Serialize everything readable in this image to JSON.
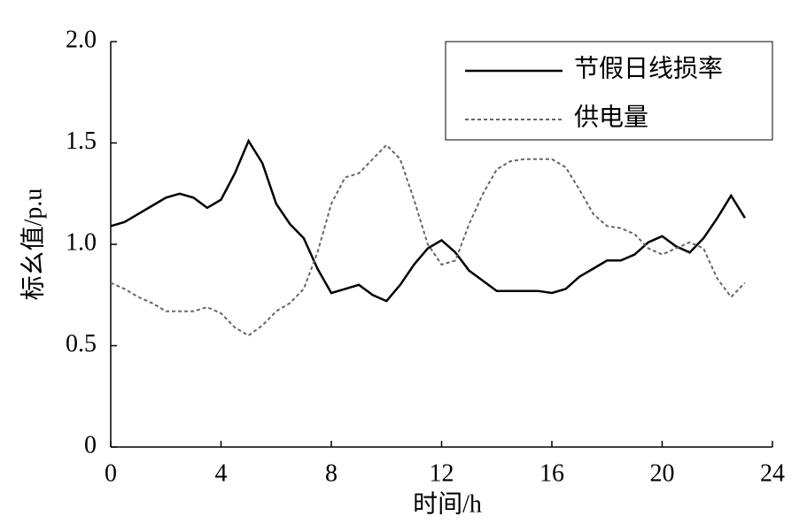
{
  "chart_data": {
    "type": "line",
    "xlabel": "时间/h",
    "ylabel": "标幺值/p.u",
    "x": [
      0,
      0.5,
      1,
      1.5,
      2,
      2.5,
      3,
      3.5,
      4,
      4.5,
      5,
      5.5,
      6,
      6.5,
      7,
      7.5,
      8,
      8.5,
      9,
      9.5,
      10,
      10.5,
      11,
      11.5,
      12,
      12.5,
      13,
      13.5,
      14,
      14.5,
      15,
      15.5,
      16,
      16.5,
      17,
      17.5,
      18,
      18.5,
      19,
      19.5,
      20,
      20.5,
      21,
      21.5,
      22,
      22.5,
      23
    ],
    "series": [
      {
        "name": "节假日线损率",
        "color": "#000000",
        "dash": false,
        "values": [
          1.09,
          1.11,
          1.15,
          1.19,
          1.23,
          1.25,
          1.23,
          1.18,
          1.22,
          1.35,
          1.51,
          1.4,
          1.2,
          1.1,
          1.03,
          0.88,
          0.76,
          0.78,
          0.8,
          0.75,
          0.72,
          0.8,
          0.9,
          0.98,
          1.02,
          0.96,
          0.87,
          0.82,
          0.77,
          0.77,
          0.77,
          0.77,
          0.76,
          0.78,
          0.84,
          0.88,
          0.92,
          0.92,
          0.95,
          1.01,
          1.04,
          0.99,
          0.96,
          1.03,
          1.13,
          1.24,
          1.13
        ]
      },
      {
        "name": "供电量",
        "color": "#666666",
        "dash": true,
        "values": [
          0.81,
          0.78,
          0.74,
          0.71,
          0.67,
          0.67,
          0.67,
          0.69,
          0.66,
          0.59,
          0.55,
          0.6,
          0.67,
          0.71,
          0.78,
          0.96,
          1.2,
          1.33,
          1.35,
          1.42,
          1.49,
          1.42,
          1.22,
          1.0,
          0.9,
          0.92,
          1.1,
          1.25,
          1.37,
          1.41,
          1.42,
          1.42,
          1.42,
          1.38,
          1.27,
          1.15,
          1.09,
          1.08,
          1.05,
          0.98,
          0.95,
          0.98,
          1.01,
          0.98,
          0.83,
          0.74,
          0.81
        ]
      }
    ],
    "xlim": [
      0,
      24
    ],
    "xticks": [
      0,
      4,
      8,
      12,
      16,
      20,
      24
    ],
    "ylim": [
      0,
      2
    ],
    "yticks": [
      0,
      {
        "value": 0.5,
        "label": "0.5"
      },
      {
        "value": 1,
        "label": "1.0"
      },
      {
        "value": 1.5,
        "label": "1.5"
      },
      {
        "value": 2,
        "label": "2.0"
      }
    ],
    "grid": false,
    "legend": "upper right"
  }
}
